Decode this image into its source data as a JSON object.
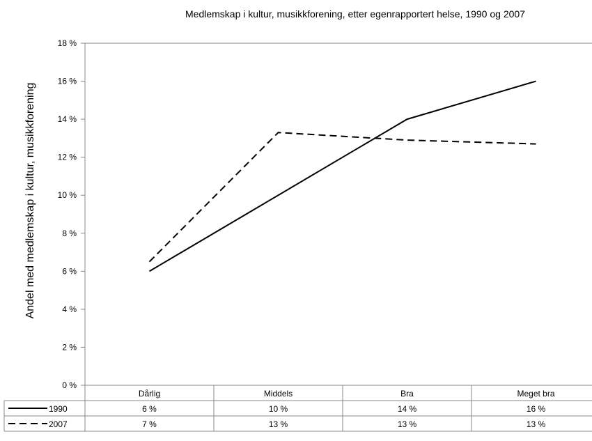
{
  "chart_data": {
    "type": "line",
    "title": "Medlemskap i kultur, musikkforening, etter egenrapportert helse, 1990 og 2007",
    "xlabel": "",
    "ylabel": "Andel med medlemskap i kultur, musikkforening",
    "ylim": [
      0,
      18
    ],
    "y_ticks": [
      0,
      2,
      4,
      6,
      8,
      10,
      12,
      14,
      16,
      18
    ],
    "y_tick_labels": [
      "0 %",
      "2 %",
      "4 %",
      "6 %",
      "8 %",
      "10 %",
      "12 %",
      "14 %",
      "16 %",
      "18 %"
    ],
    "categories": [
      "Dårlig",
      "Middels",
      "Bra",
      "Meget bra"
    ],
    "series": [
      {
        "name": "1990",
        "values": [
          6.0,
          10.0,
          14.0,
          16.0
        ],
        "table_labels": [
          "6 %",
          "10 %",
          "14 %",
          "16 %"
        ],
        "line_style": "solid",
        "color": "#000000"
      },
      {
        "name": "2007",
        "values": [
          6.5,
          13.3,
          12.9,
          12.7
        ],
        "table_labels": [
          "7 %",
          "13 %",
          "13 %",
          "13 %"
        ],
        "line_style": "dashed",
        "color": "#000000"
      }
    ],
    "grid": false,
    "legend": "data-table"
  }
}
